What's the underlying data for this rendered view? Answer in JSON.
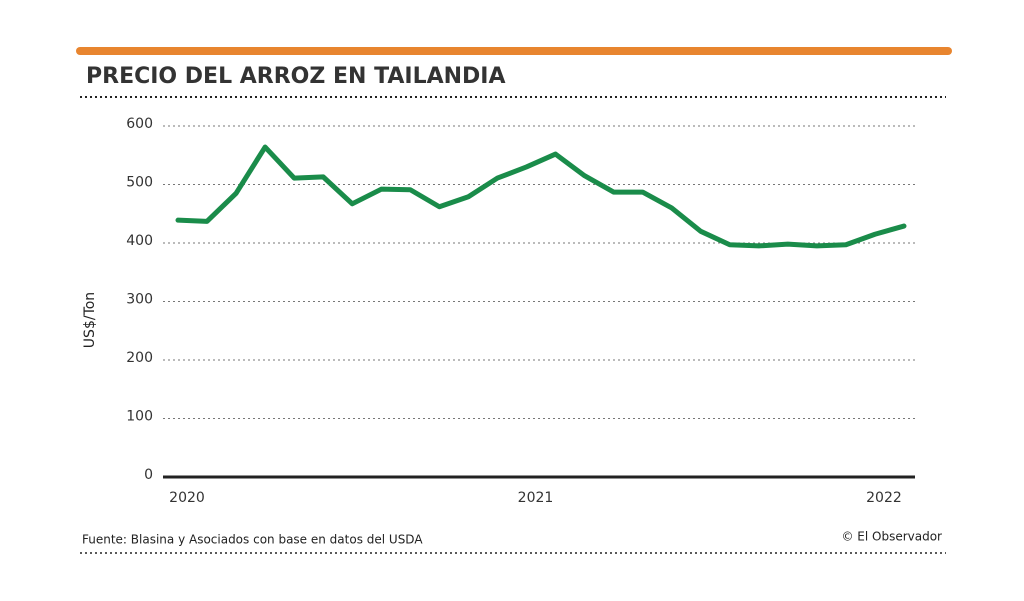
{
  "chart_data": {
    "type": "line",
    "title": "PRECIO DEL ARROZ EN TAILANDIA",
    "y_label": "US$/Ton",
    "source": "Fuente: Blasina y Asociados con base en datos del USDA",
    "credit": "© El Observador",
    "categories": [
      "2020",
      null,
      null,
      null,
      null,
      null,
      null,
      null,
      null,
      null,
      null,
      null,
      "2021",
      null,
      null,
      null,
      null,
      null,
      null,
      null,
      null,
      null,
      null,
      null,
      "2022",
      null
    ],
    "series": [
      {
        "name": "Precio",
        "color": "#1a8c4a",
        "values": [
          439,
          437,
          485,
          564,
          511,
          513,
          467,
          492,
          491,
          462,
          479,
          511,
          530,
          552,
          515,
          487,
          487,
          460,
          420,
          397,
          395,
          398,
          395,
          397,
          415,
          429
        ]
      }
    ],
    "ylim": [
      0,
      600
    ],
    "yticks": [
      0,
      100,
      200,
      300,
      400,
      500,
      600
    ],
    "grid": true
  }
}
